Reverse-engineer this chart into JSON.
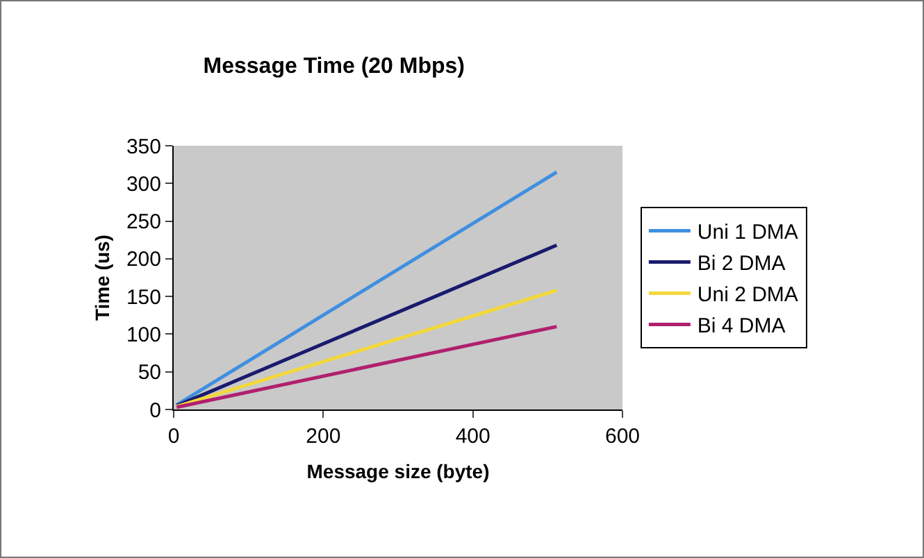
{
  "chart_data": {
    "type": "line",
    "title": "Message Time (20 Mbps)",
    "xlabel": "Message size (byte)",
    "ylabel": "Time (us)",
    "x": [
      4,
      512
    ],
    "series": [
      {
        "name": "Uni 1 DMA",
        "color": "#3f8fe0",
        "values": [
          6,
          315
        ]
      },
      {
        "name": "Bi 2 DMA",
        "color": "#1a1a6e",
        "values": [
          5,
          218
        ]
      },
      {
        "name": "Uni 2 DMA",
        "color": "#f2d83a",
        "values": [
          4,
          158
        ]
      },
      {
        "name": "Bi 4 DMA",
        "color": "#b0206e",
        "values": [
          3,
          110
        ]
      }
    ],
    "xlim": [
      0,
      600
    ],
    "xticks": [
      0,
      200,
      400,
      600
    ],
    "ylim": [
      0,
      350
    ],
    "yticks": [
      0,
      50,
      100,
      150,
      200,
      250,
      300,
      350
    ],
    "grid": false,
    "legend": "right",
    "marker": "none",
    "line_style": "solid"
  }
}
